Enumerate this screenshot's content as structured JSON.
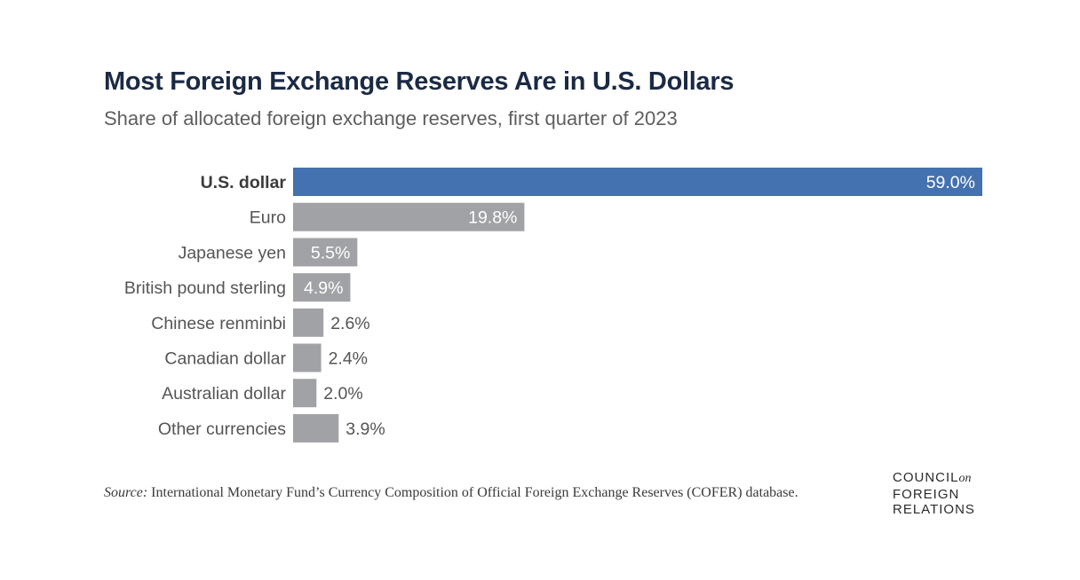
{
  "title": "Most Foreign Exchange Reserves Are in U.S. Dollars",
  "subtitle": "Share of allocated foreign exchange reserves, first quarter of 2023",
  "source": {
    "label": "Source:",
    "text": "International Monetary Fund’s Currency Composition of Official Foreign Exchange Reserves (COFER) database."
  },
  "logo": {
    "line1": "COUNCIL",
    "line1_suffix": "on",
    "line2": "FOREIGN",
    "line3": "RELATIONS"
  },
  "chart_data": {
    "type": "bar",
    "orientation": "horizontal",
    "title": "Most Foreign Exchange Reserves Are in U.S. Dollars",
    "subtitle": "Share of allocated foreign exchange reserves, first quarter of 2023",
    "categories": [
      "U.S. dollar",
      "Euro",
      "Japanese yen",
      "British pound sterling",
      "Chinese renminbi",
      "Canadian dollar",
      "Australian dollar",
      "Other currencies"
    ],
    "values": [
      59.0,
      19.8,
      5.5,
      4.9,
      2.6,
      2.4,
      2.0,
      3.9
    ],
    "labels": [
      "59.0%",
      "19.8%",
      "5.5%",
      "4.9%",
      "2.6%",
      "2.4%",
      "2.0%",
      "3.9%"
    ],
    "unit": "%",
    "xlim": [
      0,
      59.0
    ],
    "highlight_index": 0,
    "colors": {
      "highlight": "#4471b0",
      "default": "#a0a2a5",
      "label_inside": "#ffffff",
      "label_outside": "#555555",
      "category": "#555555",
      "category_highlight": "#3b3b3b"
    },
    "grid": false,
    "legend": "none",
    "xlabel": "",
    "ylabel": ""
  }
}
